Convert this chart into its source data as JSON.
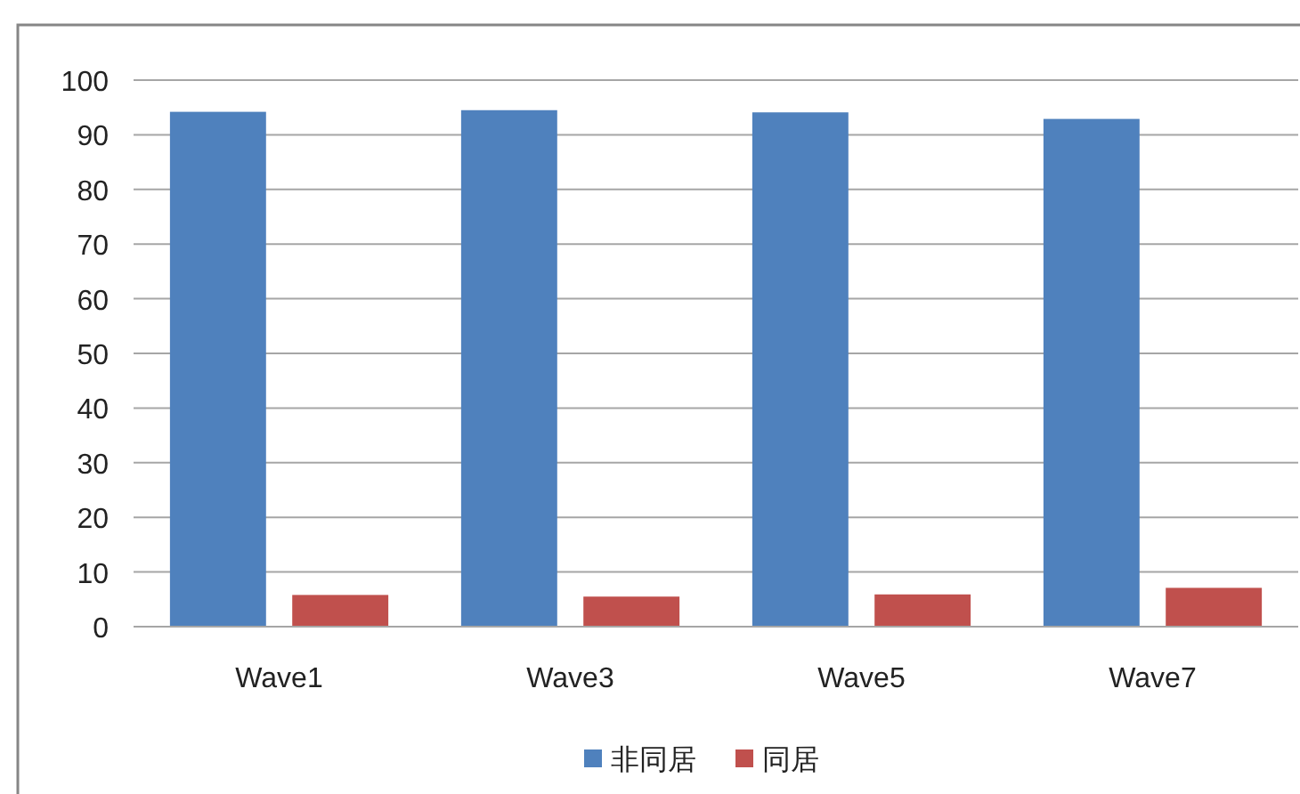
{
  "chart_data": {
    "type": "bar",
    "categories": [
      "Wave1",
      "Wave3",
      "Wave5",
      "Wave7"
    ],
    "series": [
      {
        "name": "非同居",
        "color": "#4f81bd",
        "values": [
          94.2,
          94.5,
          94.1,
          92.9
        ]
      },
      {
        "name": "同居",
        "color": "#c0504d",
        "values": [
          5.8,
          5.5,
          5.9,
          7.1
        ]
      }
    ],
    "ylim": [
      0,
      100
    ],
    "yticks": [
      0,
      10,
      20,
      30,
      40,
      50,
      60,
      70,
      80,
      90,
      100
    ],
    "grid": "y",
    "legend": "bottom"
  }
}
